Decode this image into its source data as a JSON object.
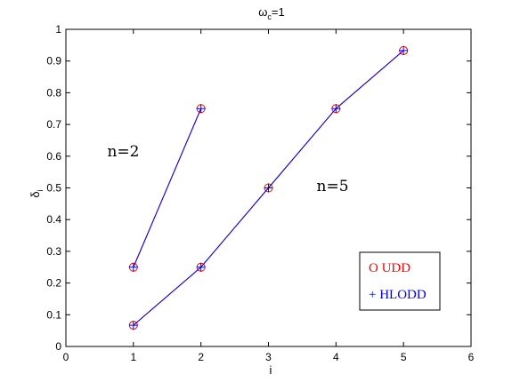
{
  "chart_data": {
    "type": "line",
    "title": "ωc=1",
    "title_main": "ω",
    "title_sub": "c",
    "title_rest": "=1",
    "xlabel": "i",
    "ylabel_main": "δ",
    "ylabel_sub": "i",
    "xlim": [
      0,
      6
    ],
    "ylim": [
      0,
      1
    ],
    "xticks": [
      0,
      1,
      2,
      3,
      4,
      5,
      6
    ],
    "yticks": [
      0,
      0.1,
      0.2,
      0.3,
      0.4,
      0.5,
      0.6,
      0.7,
      0.8,
      0.9,
      1
    ],
    "grid": false,
    "legend_position": "lower-right",
    "series": [
      {
        "name": "O UDD",
        "marker": "circle",
        "color": "#ff0000",
        "groups": [
          {
            "x": [
              1,
              2
            ],
            "y": [
              0.25,
              0.75
            ]
          },
          {
            "x": [
              1,
              2,
              3,
              4,
              5
            ],
            "y": [
              0.067,
              0.25,
              0.5,
              0.75,
              0.933
            ]
          }
        ]
      },
      {
        "name": "+ HLODD",
        "marker": "plus",
        "color": "#0000ff",
        "groups": [
          {
            "x": [
              1,
              2
            ],
            "y": [
              0.25,
              0.75
            ]
          },
          {
            "x": [
              1,
              2,
              3,
              4,
              5
            ],
            "y": [
              0.067,
              0.25,
              0.5,
              0.75,
              0.933
            ]
          }
        ]
      }
    ],
    "annotations": [
      {
        "text": "n=2",
        "x": 0.85,
        "y": 0.6
      },
      {
        "text": "n=5",
        "x": 3.95,
        "y": 0.49
      }
    ]
  }
}
